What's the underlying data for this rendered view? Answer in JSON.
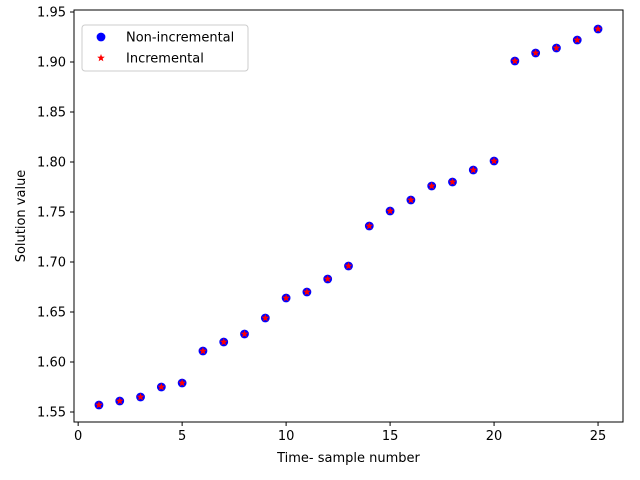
{
  "chart_data": {
    "type": "scatter",
    "xlabel": "Time- sample number",
    "ylabel": "Solution value",
    "xlim": [
      -0.2,
      26.2
    ],
    "ylim": [
      1.54,
      1.952
    ],
    "xticks": [
      0,
      5,
      10,
      15,
      20,
      25
    ],
    "yticks": [
      1.55,
      1.6,
      1.65,
      1.7,
      1.75,
      1.8,
      1.85,
      1.9,
      1.95
    ],
    "xtick_labels": [
      "0",
      "5",
      "10",
      "15",
      "20",
      "25"
    ],
    "ytick_labels": [
      "1.55",
      "1.60",
      "1.65",
      "1.70",
      "1.75",
      "1.80",
      "1.85",
      "1.90",
      "1.95"
    ],
    "legend_position": "top-left",
    "grid": false,
    "series": [
      {
        "name": "Non-incremental",
        "marker": "circle",
        "color": "#0000ff",
        "x": [
          1,
          2,
          3,
          4,
          5,
          6,
          7,
          8,
          9,
          10,
          11,
          12,
          13,
          14,
          15,
          16,
          17,
          18,
          19,
          20,
          21,
          22,
          23,
          24,
          25
        ],
        "y": [
          1.557,
          1.561,
          1.565,
          1.575,
          1.579,
          1.611,
          1.62,
          1.628,
          1.644,
          1.664,
          1.67,
          1.683,
          1.696,
          1.736,
          1.751,
          1.762,
          1.776,
          1.78,
          1.792,
          1.801,
          1.901,
          1.909,
          1.914,
          1.922,
          1.933
        ]
      },
      {
        "name": "Incremental",
        "marker": "star",
        "color": "#ff0000",
        "x": [
          1,
          2,
          3,
          4,
          5,
          6,
          7,
          8,
          9,
          10,
          11,
          12,
          13,
          14,
          15,
          16,
          17,
          18,
          19,
          20,
          21,
          22,
          23,
          24,
          25
        ],
        "y": [
          1.557,
          1.561,
          1.565,
          1.575,
          1.579,
          1.611,
          1.62,
          1.628,
          1.644,
          1.664,
          1.67,
          1.683,
          1.696,
          1.736,
          1.751,
          1.762,
          1.776,
          1.78,
          1.792,
          1.801,
          1.901,
          1.909,
          1.914,
          1.922,
          1.933
        ]
      }
    ]
  }
}
